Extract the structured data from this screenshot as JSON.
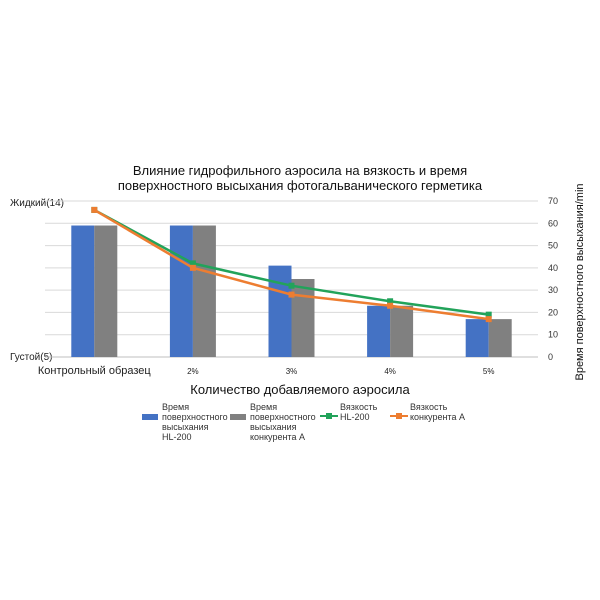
{
  "chart_data": {
    "type": "bar+line",
    "title_line1": "Влияние гидрофильного аэросила на вязкость и время",
    "title_line2": "поверхностного высыхания фотогальванического герметика",
    "xlabel": "Количество добавляемого аэросила",
    "ylabel_right": "Время поверхностного высыхания/min",
    "left_top_label": "Жидкий(14)",
    "left_bottom_label": "Густой(5)",
    "categories": [
      "Контрольный образец",
      "2%",
      "3%",
      "4%",
      "5%"
    ],
    "right_axis": {
      "min": 0,
      "max": 70,
      "ticks": [
        "0",
        "10",
        "20",
        "30",
        "40",
        "50",
        "60",
        "70"
      ]
    },
    "bar_series": [
      {
        "name": "Время поверхностного высыхания HL-200",
        "color": "#4472C4",
        "values": [
          59,
          59,
          41,
          23,
          17
        ]
      },
      {
        "name": "Время поверхностного высыхания конкурента А",
        "color": "#808080",
        "values": [
          59,
          59,
          35,
          23,
          17
        ]
      }
    ],
    "line_series": [
      {
        "name": "Вязкость HL-200",
        "color": "#22A35A",
        "marker": "square",
        "values": [
          66,
          42,
          32,
          25,
          19
        ]
      },
      {
        "name": "Вязкость конкурента А",
        "color": "#ED7D31",
        "marker": "square",
        "values": [
          66,
          40,
          28,
          23,
          17
        ]
      }
    ],
    "legend": [
      {
        "kind": "bar",
        "color": "#4472C4",
        "lines": [
          "Время",
          "поверхностного",
          "высыхания",
          "HL-200"
        ]
      },
      {
        "kind": "bar",
        "color": "#808080",
        "lines": [
          "Время",
          "поверхностного",
          "высыхания",
          "конкурента А"
        ]
      },
      {
        "kind": "line",
        "color": "#22A35A",
        "lines": [
          "Вязкость",
          "HL-200"
        ]
      },
      {
        "kind": "line",
        "color": "#ED7D31",
        "lines": [
          "Вязкость",
          "конкурента А"
        ]
      }
    ],
    "grid": true,
    "legend_position": "bottom"
  }
}
